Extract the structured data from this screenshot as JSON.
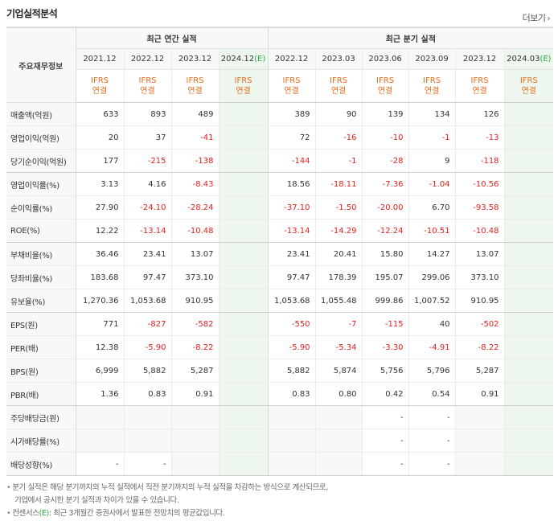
{
  "header": {
    "title": "기업실적분석",
    "more_label": "더보기"
  },
  "table": {
    "row_header_label": "주요재무정보",
    "annual_group_label": "최근 연간 실적",
    "quarter_group_label": "최근 분기 실적",
    "annual_periods": [
      "2021.12",
      "2022.12",
      "2023.12",
      "2024.12"
    ],
    "quarter_periods": [
      "2022.12",
      "2023.03",
      "2023.06",
      "2023.09",
      "2023.12",
      "2024.03"
    ],
    "estimate_suffix": "(E)",
    "ifrs_label": "IFRS",
    "basis_label": "연결",
    "rows": [
      {
        "label": "매출액(억원)",
        "annual": [
          "633",
          "893",
          "489",
          ""
        ],
        "quarter": [
          "389",
          "90",
          "139",
          "134",
          "126",
          ""
        ]
      },
      {
        "label": "영업이익(억원)",
        "annual": [
          "20",
          "37",
          "-41",
          ""
        ],
        "quarter": [
          "72",
          "-16",
          "-10",
          "-1",
          "-13",
          ""
        ]
      },
      {
        "label": "당기순이익(억원)",
        "annual": [
          "177",
          "-215",
          "-138",
          ""
        ],
        "quarter": [
          "-144",
          "-1",
          "-28",
          "9",
          "-118",
          ""
        ]
      },
      {
        "label": "영업이익률(%)",
        "annual": [
          "3.13",
          "4.16",
          "-8.43",
          ""
        ],
        "quarter": [
          "18.56",
          "-18.11",
          "-7.36",
          "-1.04",
          "-10.56",
          ""
        ]
      },
      {
        "label": "순이익률(%)",
        "annual": [
          "27.90",
          "-24.10",
          "-28.24",
          ""
        ],
        "quarter": [
          "-37.10",
          "-1.50",
          "-20.00",
          "6.70",
          "-93.58",
          ""
        ]
      },
      {
        "label": "ROE(%)",
        "annual": [
          "12.22",
          "-13.14",
          "-10.48",
          ""
        ],
        "quarter": [
          "-13.14",
          "-14.29",
          "-12.24",
          "-10.51",
          "-10.48",
          ""
        ]
      },
      {
        "label": "부채비율(%)",
        "annual": [
          "36.46",
          "23.41",
          "13.07",
          ""
        ],
        "quarter": [
          "23.41",
          "20.41",
          "15.80",
          "14.27",
          "13.07",
          ""
        ]
      },
      {
        "label": "당좌비율(%)",
        "annual": [
          "183.68",
          "97.47",
          "373.10",
          ""
        ],
        "quarter": [
          "97.47",
          "178.39",
          "195.07",
          "299.06",
          "373.10",
          ""
        ]
      },
      {
        "label": "유보율(%)",
        "annual": [
          "1,270.36",
          "1,053.68",
          "910.95",
          ""
        ],
        "quarter": [
          "1,053.68",
          "1,055.48",
          "999.86",
          "1,007.52",
          "910.95",
          ""
        ]
      },
      {
        "label": "EPS(원)",
        "annual": [
          "771",
          "-827",
          "-582",
          ""
        ],
        "quarter": [
          "-550",
          "-7",
          "-115",
          "40",
          "-502",
          ""
        ]
      },
      {
        "label": "PER(배)",
        "annual": [
          "12.38",
          "-5.90",
          "-8.22",
          ""
        ],
        "quarter": [
          "-5.90",
          "-5.34",
          "-3.30",
          "-4.91",
          "-8.22",
          ""
        ]
      },
      {
        "label": "BPS(원)",
        "annual": [
          "6,999",
          "5,882",
          "5,287",
          ""
        ],
        "quarter": [
          "5,882",
          "5,874",
          "5,756",
          "5,796",
          "5,287",
          ""
        ]
      },
      {
        "label": "PBR(배)",
        "annual": [
          "1.36",
          "0.83",
          "0.91",
          ""
        ],
        "quarter": [
          "0.83",
          "0.80",
          "0.42",
          "0.54",
          "0.91",
          ""
        ]
      },
      {
        "label": "주당배당금(원)",
        "annual": [
          "",
          "",
          "",
          ""
        ],
        "quarter": [
          "",
          "",
          "-",
          "-",
          "",
          ""
        ]
      },
      {
        "label": "시가배당률(%)",
        "annual": [
          "",
          "",
          "",
          ""
        ],
        "quarter": [
          "",
          "",
          "-",
          "-",
          "",
          ""
        ]
      },
      {
        "label": "배당성향(%)",
        "annual": [
          "-",
          "-",
          "",
          ""
        ],
        "quarter": [
          "",
          "",
          "-",
          "-",
          "",
          ""
        ]
      }
    ]
  },
  "notes": {
    "line1": "분기 실적은 해당 분기까지의 누적 실적에서 직전 분기까지의 누적 실적을 차감하는 방식으로 계산되므로,",
    "line2": "기업에서 공시한 분기 실적과 차이가 있을 수 있습니다.",
    "line3_prefix": "컨센서스",
    "line3_e": "(E)",
    "line3_suffix": ": 최근 3개월간 증권사에서 발표한 전망치의 평균값입니다."
  }
}
